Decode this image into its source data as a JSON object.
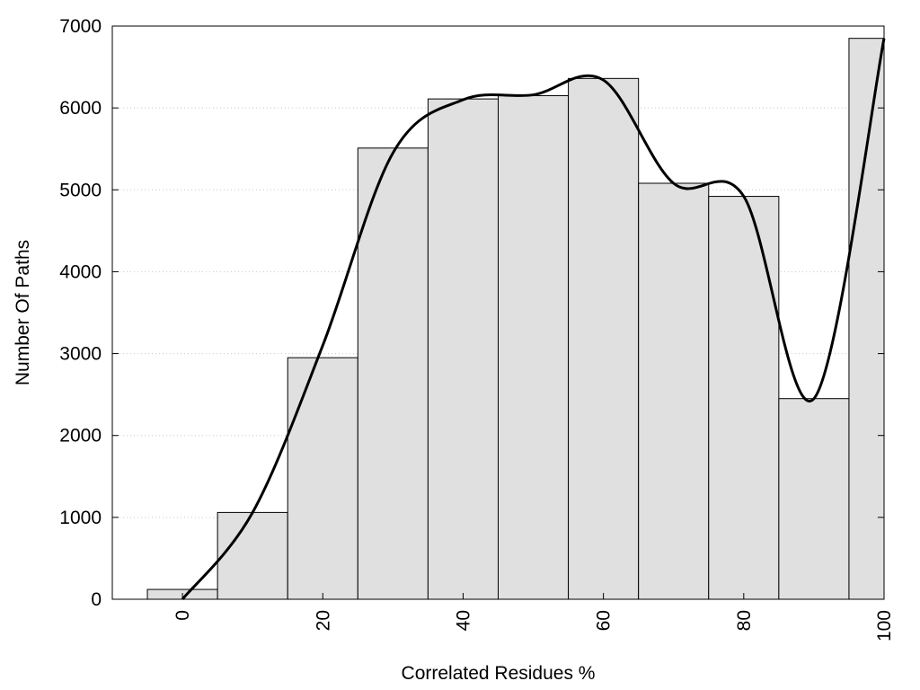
{
  "chart_data": {
    "type": "bar",
    "xlabel": "Correlated Residues %",
    "ylabel": "Number Of Paths",
    "xlim": [
      -10,
      100
    ],
    "ylim": [
      0,
      7000
    ],
    "x_ticks": [
      0,
      20,
      40,
      60,
      80,
      100
    ],
    "y_ticks": [
      0,
      1000,
      2000,
      3000,
      4000,
      5000,
      6000,
      7000
    ],
    "grid": "horizontal-dotted",
    "bin_width": 10,
    "categories": [
      0,
      10,
      20,
      30,
      40,
      50,
      60,
      70,
      80,
      90,
      100
    ],
    "values": [
      120,
      1060,
      2950,
      5510,
      6110,
      6150,
      6360,
      5080,
      4920,
      2450,
      6850
    ],
    "fit_curve": {
      "x": [
        0,
        10,
        20,
        30,
        40,
        50,
        60,
        70,
        80,
        90,
        100
      ],
      "y": [
        0,
        1060,
        3100,
        5450,
        6100,
        6160,
        6340,
        5080,
        4920,
        2450,
        6850
      ]
    }
  }
}
